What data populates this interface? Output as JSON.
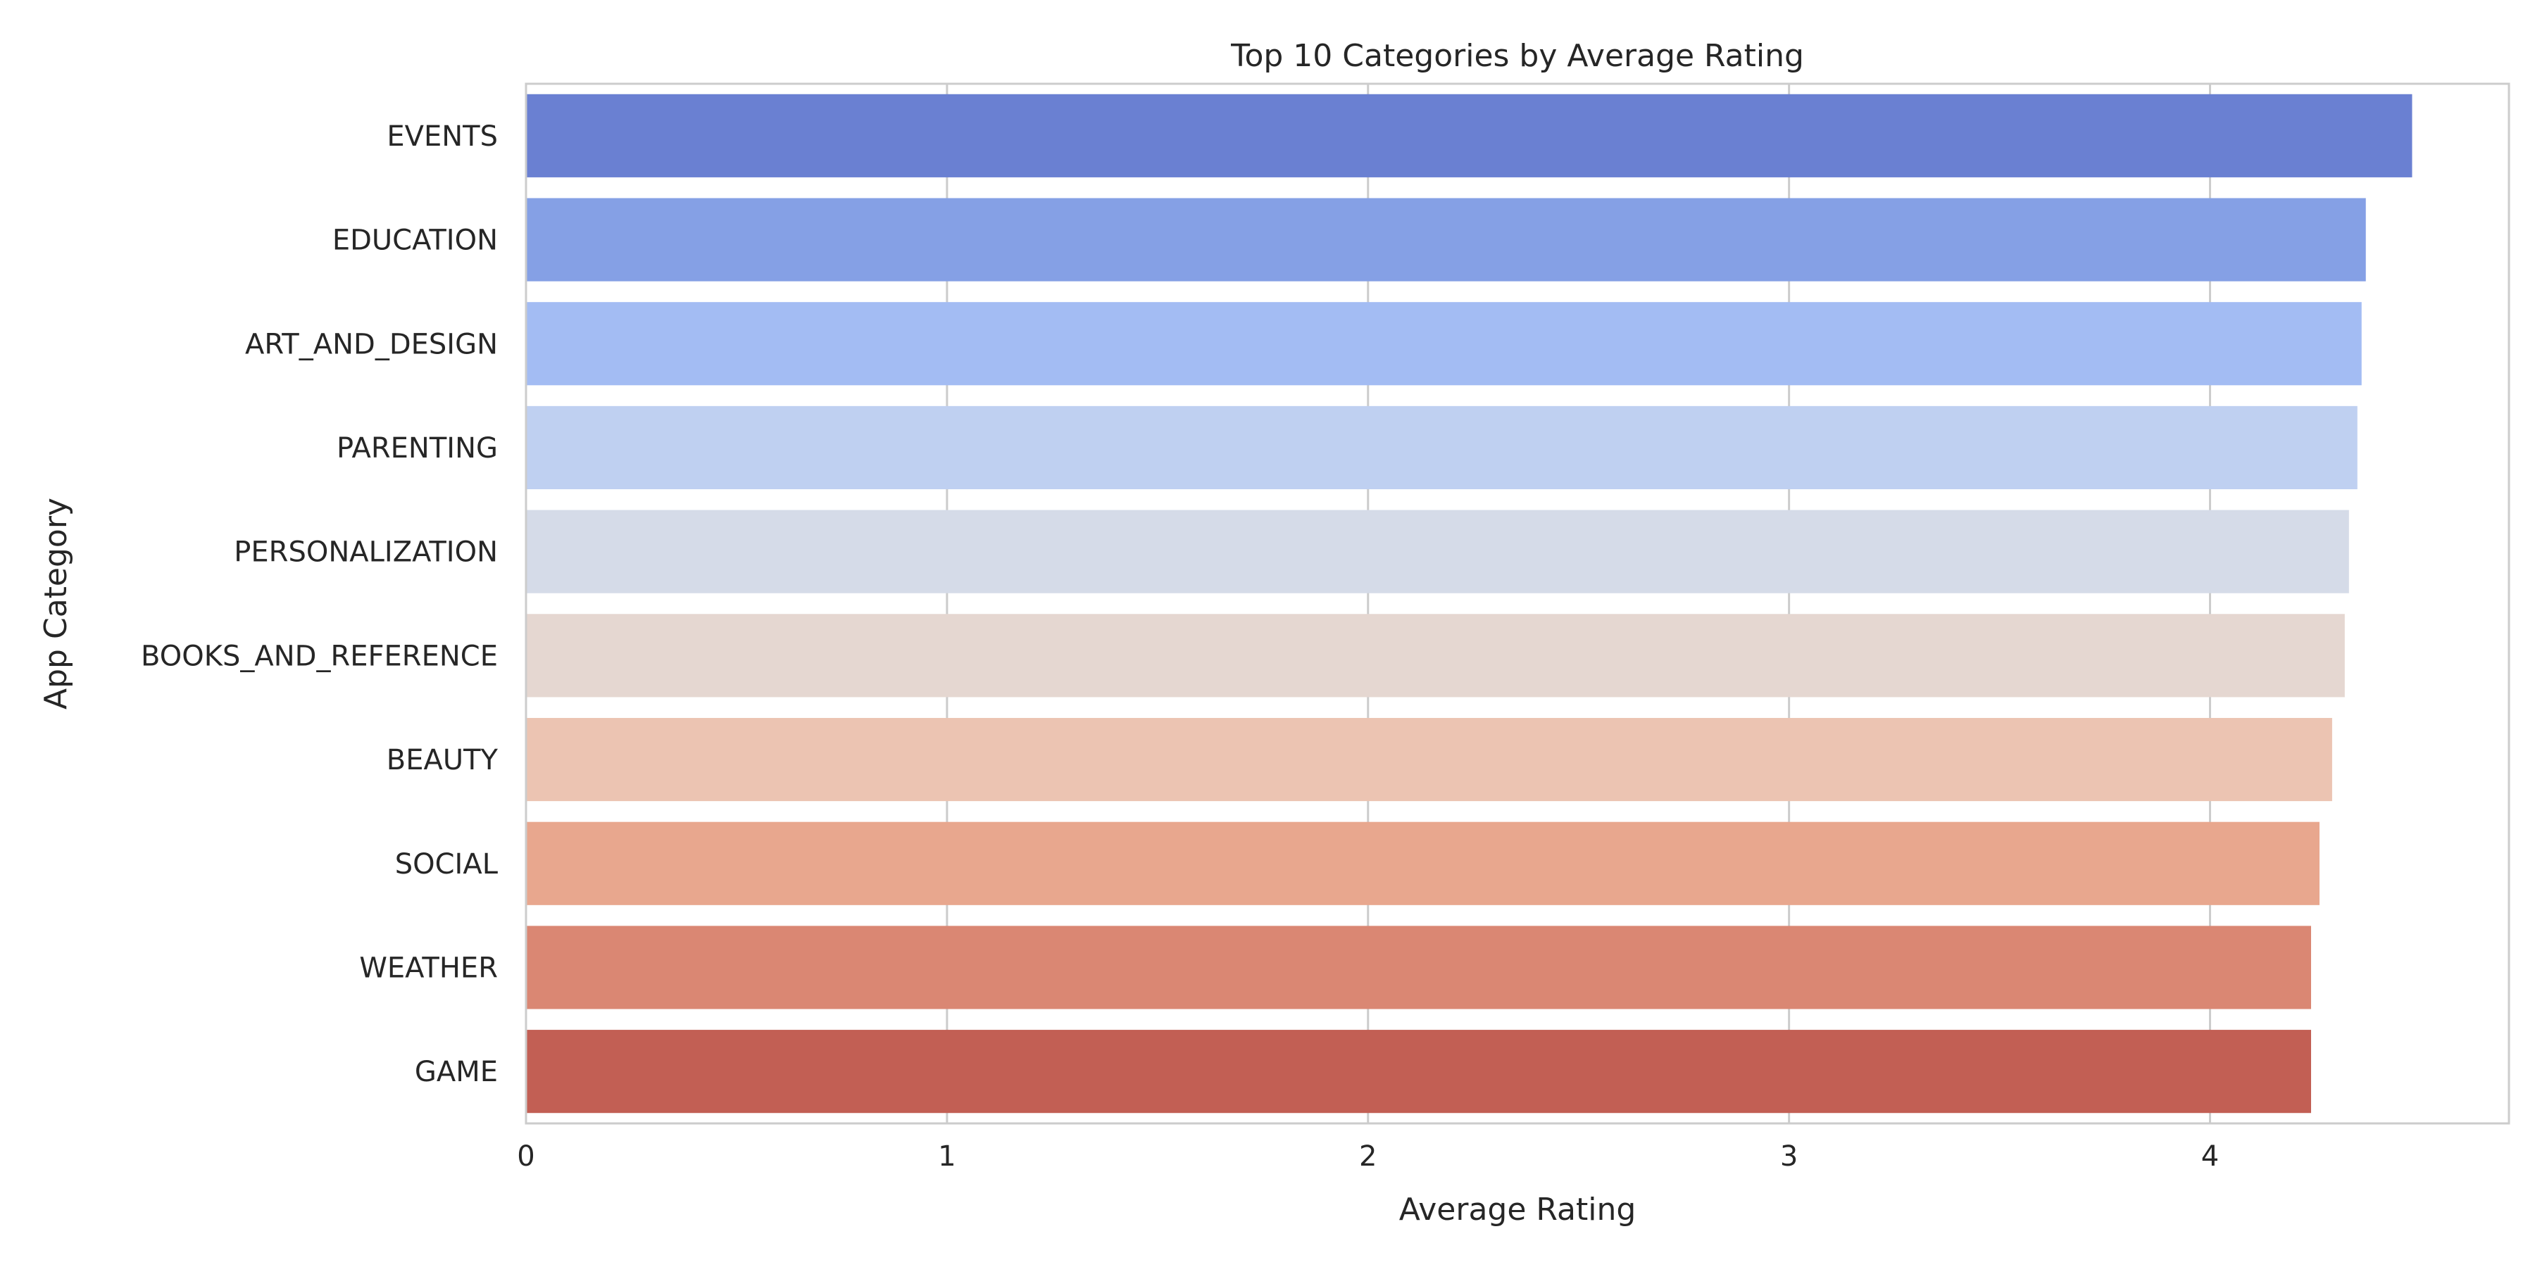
{
  "chart_data": {
    "type": "bar",
    "orientation": "horizontal",
    "title": "Top 10 Categories by Average Rating",
    "xlabel": "Average Rating",
    "ylabel": "App Category",
    "xlim": [
      0,
      4.71
    ],
    "xticks": [
      0,
      1,
      2,
      3,
      4
    ],
    "grid": true,
    "legend": "none",
    "categories": [
      "EVENTS",
      "EDUCATION",
      "ART_AND_DESIGN",
      "PARENTING",
      "PERSONALIZATION",
      "BOOKS_AND_REFERENCE",
      "BEAUTY",
      "SOCIAL",
      "WEATHER",
      "GAME"
    ],
    "values": [
      4.48,
      4.37,
      4.36,
      4.35,
      4.33,
      4.32,
      4.29,
      4.26,
      4.24,
      4.24
    ],
    "colors": [
      "#6a80d2",
      "#85a0e5",
      "#a3bcf3",
      "#bfd0f1",
      "#d5dbe8",
      "#e5d7d1",
      "#ecc4b2",
      "#e8a78e",
      "#da8773",
      "#c25f54"
    ]
  }
}
